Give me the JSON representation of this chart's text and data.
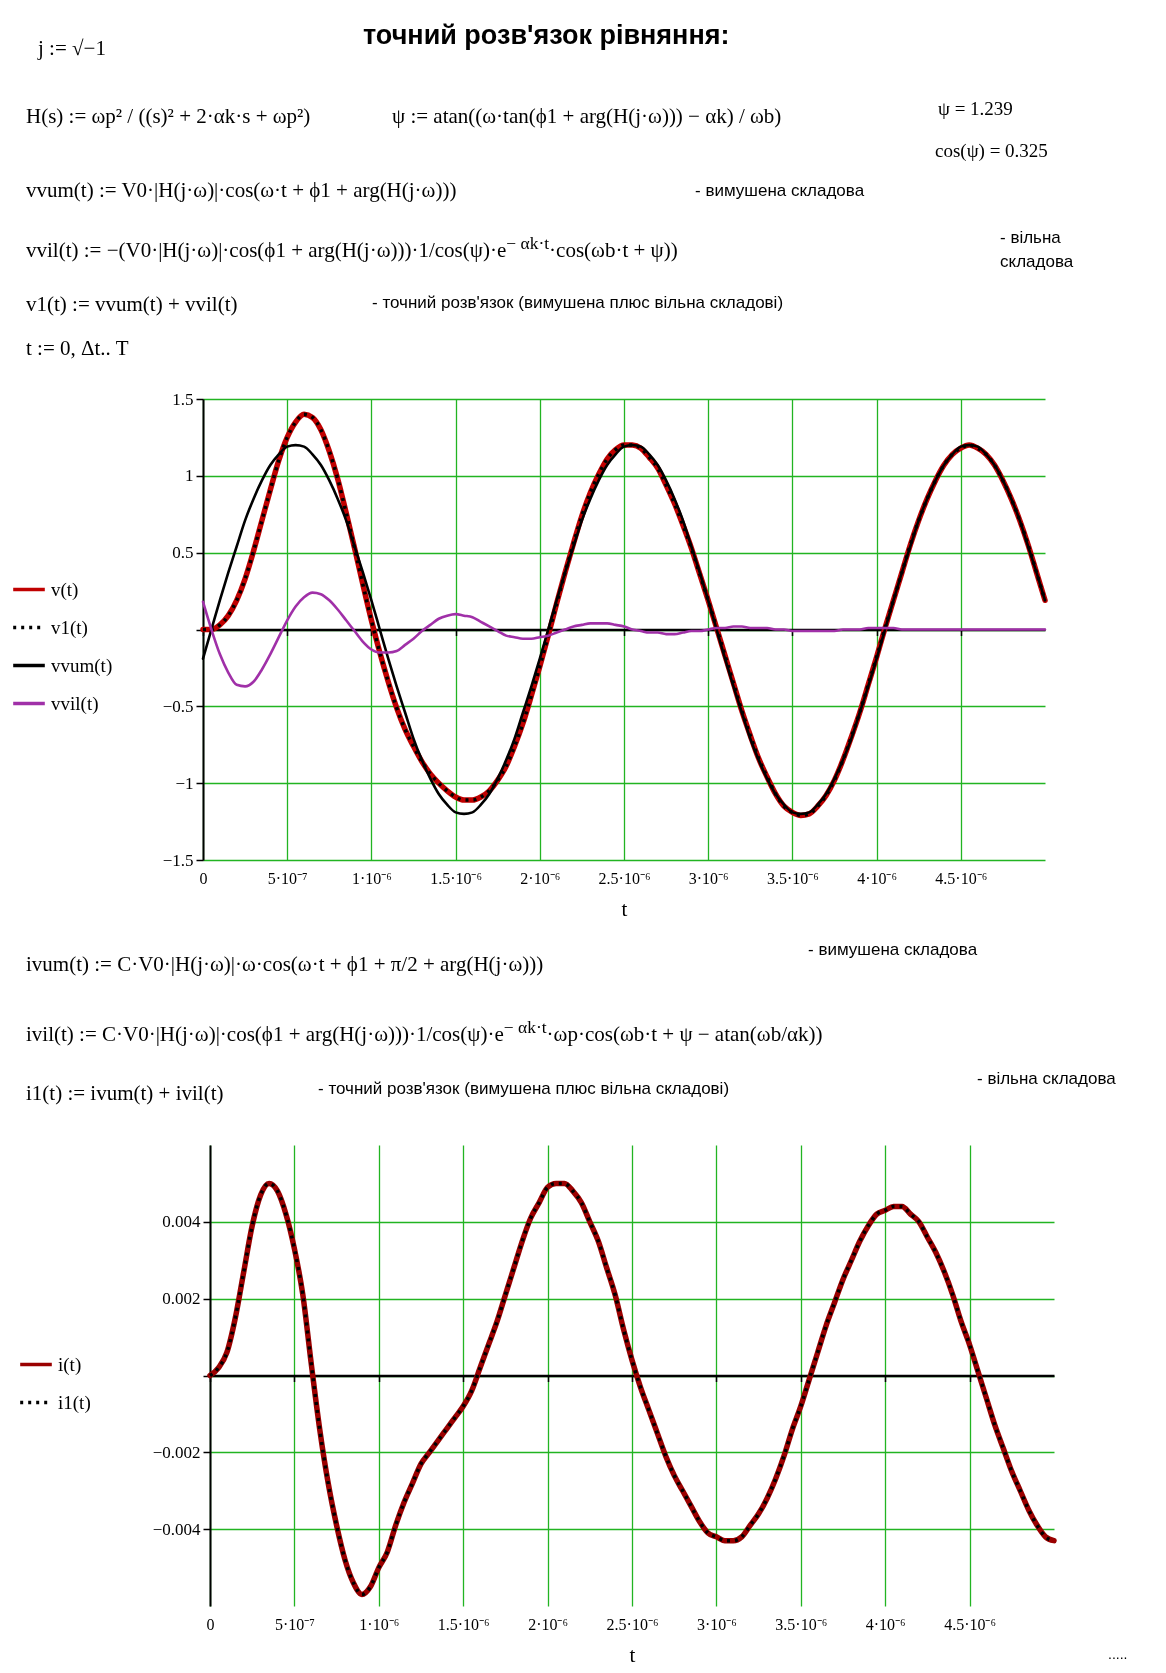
{
  "chart_data": [
    {
      "type": "line",
      "title": "точний розв'язок рівняння:",
      "annotations": [
        "j := √−1",
        "H(s) := ωp² / ((s)² + 2·αk·s + ωp²)",
        "ψ := atan((ω·tan(ϕ1 + arg(H(j·ω))) − αk) / ωb)",
        "ψ = 1.239",
        "cos(ψ) = 0.325",
        "vvum(t) := V0·|H(j·ω)|·cos(ω·t + ϕ1 + arg(H(j·ω)))",
        "- вимушена складова",
        "vvil(t) := −(V0·|H(j·ω)|·cos(ϕ1 + arg(H(j·ω)))·1/cos(ψ)·e$^{− αk·t}$·cos(ωb·t + ψ))",
        "- вільна складова",
        "v1(t) := vvum(t) + vvil(t)",
        "- точний розв'язок (вимушена плюс вільна складові)",
        "t := 0, Δt.. T"
      ],
      "xlabel": "t",
      "x": [
        0,
        5e-08,
        1e-07,
        1.5e-07,
        2e-07,
        2.5e-07,
        3e-07,
        3.5e-07,
        4e-07,
        4.5e-07,
        5e-07,
        5.5e-07,
        6e-07,
        6.5e-07,
        7e-07,
        7.5e-07,
        8e-07,
        8.5e-07,
        9e-07,
        9.5e-07,
        1e-06,
        1.05e-06,
        1.1e-06,
        1.15e-06,
        1.2e-06,
        1.25e-06,
        1.3e-06,
        1.35e-06,
        1.4e-06,
        1.45e-06,
        1.5e-06,
        1.55e-06,
        1.6e-06,
        1.65e-06,
        1.7e-06,
        1.75e-06,
        1.8e-06,
        1.85e-06,
        1.9e-06,
        1.95e-06,
        2e-06,
        2.05e-06,
        2.1e-06,
        2.15e-06,
        2.2e-06,
        2.25e-06,
        2.3e-06,
        2.35e-06,
        2.4e-06,
        2.45e-06,
        2.5e-06,
        2.55e-06,
        2.6e-06,
        2.65e-06,
        2.7e-06,
        2.75e-06,
        2.8e-06,
        2.85e-06,
        2.9e-06,
        2.95e-06,
        3e-06,
        3.05e-06,
        3.1e-06,
        3.15e-06,
        3.2e-06,
        3.25e-06,
        3.3e-06,
        3.35e-06,
        3.4e-06,
        3.45e-06,
        3.5e-06,
        3.55e-06,
        3.6e-06,
        3.65e-06,
        3.7e-06,
        3.75e-06,
        3.8e-06,
        3.85e-06,
        3.9e-06,
        3.95e-06,
        4e-06,
        4.05e-06,
        4.1e-06,
        4.15e-06,
        4.2e-06,
        4.25e-06,
        4.3e-06,
        4.35e-06,
        4.4e-06,
        4.45e-06,
        4.5e-06,
        4.55e-06,
        4.6e-06,
        4.65e-06,
        4.7e-06,
        4.75e-06,
        4.8e-06,
        4.85e-06,
        4.9e-06,
        4.95e-06,
        5e-06
      ],
      "series": [
        {
          "name": "v(t)",
          "color": "#c00000",
          "values": [
            0,
            0,
            0.03,
            0.09,
            0.19,
            0.33,
            0.51,
            0.71,
            0.91,
            1.1,
            1.25,
            1.35,
            1.4,
            1.38,
            1.3,
            1.16,
            0.98,
            0.76,
            0.53,
            0.29,
            0.06,
            -0.15,
            -0.34,
            -0.51,
            -0.65,
            -0.76,
            -0.86,
            -0.94,
            -1,
            -1.05,
            -1.09,
            -1.11,
            -1.11,
            -1.09,
            -1.05,
            -0.98,
            -0.89,
            -0.76,
            -0.61,
            -0.43,
            -0.24,
            -0.04,
            0.17,
            0.37,
            0.56,
            0.74,
            0.89,
            1.01,
            1.11,
            1.17,
            1.2,
            1.2,
            1.18,
            1.12,
            1.05,
            0.94,
            0.82,
            0.68,
            0.53,
            0.36,
            0.19,
            0.01,
            -0.17,
            -0.35,
            -0.53,
            -0.69,
            -0.84,
            -0.96,
            -1.07,
            -1.15,
            -1.19,
            -1.21,
            -1.2,
            -1.15,
            -1.08,
            -0.98,
            -0.85,
            -0.7,
            -0.54,
            -0.36,
            -0.18,
            0.01,
            0.19,
            0.37,
            0.55,
            0.71,
            0.85,
            0.97,
            1.07,
            1.14,
            1.18,
            1.2,
            1.18,
            1.14,
            1.07,
            0.97,
            0.85,
            0.71,
            0.55,
            0.37,
            0.19
          ]
        },
        {
          "name": "v1(t)",
          "color": "#000000",
          "line_style": "dotted",
          "values": [
            0,
            0,
            0.03,
            0.09,
            0.19,
            0.33,
            0.51,
            0.71,
            0.91,
            1.1,
            1.25,
            1.35,
            1.4,
            1.38,
            1.3,
            1.16,
            0.98,
            0.76,
            0.53,
            0.29,
            0.06,
            -0.15,
            -0.34,
            -0.51,
            -0.65,
            -0.76,
            -0.86,
            -0.94,
            -1,
            -1.05,
            -1.09,
            -1.11,
            -1.11,
            -1.09,
            -1.05,
            -0.98,
            -0.89,
            -0.76,
            -0.61,
            -0.43,
            -0.24,
            -0.04,
            0.17,
            0.37,
            0.56,
            0.74,
            0.89,
            1.01,
            1.11,
            1.17,
            1.2,
            1.2,
            1.18,
            1.12,
            1.05,
            0.94,
            0.82,
            0.68,
            0.53,
            0.36,
            0.19,
            0.01,
            -0.17,
            -0.35,
            -0.53,
            -0.69,
            -0.84,
            -0.96,
            -1.07,
            -1.15,
            -1.19,
            -1.21,
            -1.2,
            -1.15,
            -1.08,
            -0.98,
            -0.85,
            -0.7,
            -0.54,
            -0.36,
            -0.18,
            0.01,
            0.19,
            0.37,
            0.55,
            0.71,
            0.85,
            0.97,
            1.07,
            1.14,
            1.18,
            1.2,
            1.18,
            1.14,
            1.07,
            0.97,
            0.85,
            0.71,
            0.55,
            0.37,
            0.19
          ]
        },
        {
          "name": "vvum(t)",
          "color": "#000000",
          "values": [
            -0.19,
            0,
            0.19,
            0.37,
            0.54,
            0.71,
            0.85,
            0.97,
            1.07,
            1.14,
            1.19,
            1.2,
            1.19,
            1.14,
            1.07,
            0.97,
            0.85,
            0.71,
            0.54,
            0.37,
            0.19,
            0,
            -0.19,
            -0.37,
            -0.54,
            -0.71,
            -0.85,
            -0.97,
            -1.07,
            -1.14,
            -1.19,
            -1.2,
            -1.19,
            -1.14,
            -1.07,
            -0.97,
            -0.85,
            -0.71,
            -0.54,
            -0.37,
            -0.19,
            0,
            0.19,
            0.37,
            0.54,
            0.71,
            0.85,
            0.97,
            1.07,
            1.14,
            1.19,
            1.2,
            1.19,
            1.14,
            1.07,
            0.97,
            0.85,
            0.71,
            0.54,
            0.37,
            0.19,
            0,
            -0.19,
            -0.37,
            -0.54,
            -0.71,
            -0.85,
            -0.97,
            -1.07,
            -1.14,
            -1.19,
            -1.2,
            -1.19,
            -1.14,
            -1.07,
            -0.97,
            -0.85,
            -0.71,
            -0.54,
            -0.37,
            -0.19,
            0,
            0.19,
            0.37,
            0.54,
            0.71,
            0.85,
            0.97,
            1.07,
            1.14,
            1.19,
            1.2,
            1.19,
            1.14,
            1.07,
            0.97,
            0.85,
            0.71,
            0.54,
            0.37,
            0.19
          ]
        },
        {
          "name": "vvil(t)",
          "color": "#a030a8",
          "values": [
            0.18,
            0,
            -0.16,
            -0.28,
            -0.36,
            -0.37,
            -0.34,
            -0.26,
            -0.16,
            -0.05,
            0.06,
            0.15,
            0.21,
            0.24,
            0.23,
            0.19,
            0.13,
            0.06,
            -0.01,
            -0.08,
            -0.13,
            -0.15,
            -0.15,
            -0.14,
            -0.1,
            -0.06,
            -0.01,
            0.03,
            0.07,
            0.09,
            0.1,
            0.09,
            0.08,
            0.05,
            0.02,
            -0.01,
            -0.04,
            -0.05,
            -0.06,
            -0.06,
            -0.05,
            -0.04,
            -0.02,
            0,
            0.02,
            0.03,
            0.04,
            0.04,
            0.04,
            0.03,
            0.02,
            0,
            -0.01,
            -0.02,
            -0.02,
            -0.03,
            -0.03,
            -0.02,
            -0.01,
            -0.01,
            0,
            0.01,
            0.01,
            0.02,
            0.02,
            0.01,
            0.01,
            0.01,
            0,
            0,
            -0.01,
            -0.01,
            -0.01,
            -0.01,
            -0.01,
            -0.01,
            0,
            0,
            0,
            0.01,
            0.01,
            0.01,
            0.01,
            0,
            0,
            0,
            0,
            0,
            0,
            0,
            0,
            0,
            0,
            0,
            0,
            0,
            0,
            0,
            0,
            0,
            0
          ]
        }
      ],
      "xlim": [
        0,
        5e-06
      ],
      "xticks": [
        0,
        {
          "value": 5e-07,
          "label": "5·10⁻⁷"
        },
        {
          "value": 1e-06,
          "label": "1·10⁻⁶"
        },
        {
          "value": 1.5e-06,
          "label": "1.5·10⁻⁶"
        },
        {
          "value": 2e-06,
          "label": "2·10⁻⁶"
        },
        {
          "value": 2.5e-06,
          "label": "2.5·10⁻⁶"
        },
        {
          "value": 3e-06,
          "label": "3·10⁻⁶"
        },
        {
          "value": 3.5e-06,
          "label": "3.5·10⁻⁶"
        },
        {
          "value": 4e-06,
          "label": "4·10⁻⁶"
        },
        {
          "value": 4.5e-06,
          "label": "4.5·10⁻⁶"
        }
      ],
      "ylim": [
        -1.5,
        1.5
      ],
      "yticks": [
        -1.5,
        -1,
        -0.5,
        {
          "value": 0,
          "label": null
        },
        0.5,
        1,
        1.5
      ],
      "grid": true,
      "legend": "left"
    },
    {
      "type": "line",
      "annotations": [
        "ivum(t) := C·V0·|H(j·ω)|·ω·cos(ω·t + ϕ1 + π/2 + arg(H(j·ω)))",
        "- вимушена складова",
        "ivil(t) := C·V0·|H(j·ω)|·cos(ϕ1 + arg(H(j·ω)))·1/cos(ψ)·e$^{− αk·t}$·ωp·cos(ωb·t + ψ − atan(ωb/αk))",
        "- вільна складова",
        "i1(t) := ivum(t) + ivil(t)",
        "- точний розв'язок (вимушена плюс вільна складові)",
        "....."
      ],
      "xlabel": "t",
      "x": [
        0,
        5e-08,
        1e-07,
        1.5e-07,
        2e-07,
        2.5e-07,
        3e-07,
        3.5e-07,
        4e-07,
        4.5e-07,
        5e-07,
        5.5e-07,
        6e-07,
        6.5e-07,
        7e-07,
        7.5e-07,
        8e-07,
        8.5e-07,
        9e-07,
        9.5e-07,
        1e-06,
        1.05e-06,
        1.1e-06,
        1.15e-06,
        1.2e-06,
        1.25e-06,
        1.3e-06,
        1.35e-06,
        1.4e-06,
        1.45e-06,
        1.5e-06,
        1.55e-06,
        1.6e-06,
        1.65e-06,
        1.7e-06,
        1.75e-06,
        1.8e-06,
        1.85e-06,
        1.9e-06,
        1.95e-06,
        2e-06,
        2.05e-06,
        2.1e-06,
        2.15e-06,
        2.2e-06,
        2.25e-06,
        2.3e-06,
        2.35e-06,
        2.4e-06,
        2.45e-06,
        2.5e-06,
        2.55e-06,
        2.6e-06,
        2.65e-06,
        2.7e-06,
        2.75e-06,
        2.8e-06,
        2.85e-06,
        2.9e-06,
        2.95e-06,
        3e-06,
        3.05e-06,
        3.1e-06,
        3.15e-06,
        3.2e-06,
        3.25e-06,
        3.3e-06,
        3.35e-06,
        3.4e-06,
        3.45e-06,
        3.5e-06,
        3.55e-06,
        3.6e-06,
        3.65e-06,
        3.7e-06,
        3.75e-06,
        3.8e-06,
        3.85e-06,
        3.9e-06,
        3.95e-06,
        4e-06,
        4.05e-06,
        4.1e-06,
        4.15e-06,
        4.2e-06,
        4.25e-06,
        4.3e-06,
        4.35e-06,
        4.4e-06,
        4.45e-06,
        4.5e-06,
        4.55e-06,
        4.6e-06,
        4.65e-06,
        4.7e-06,
        4.75e-06,
        4.8e-06,
        4.85e-06,
        4.9e-06,
        4.95e-06,
        5e-06
      ],
      "series": [
        {
          "name": "i(t)",
          "color": "#9a0000",
          "values": [
            0,
            0.0002,
            0.0006,
            0.0015,
            0.0027,
            0.0039,
            0.0047,
            0.005,
            0.0048,
            0.0042,
            0.0033,
            0.0021,
            0.0003,
            -0.0014,
            -0.0028,
            -0.0039,
            -0.0048,
            -0.0054,
            -0.0057,
            -0.0055,
            -0.005,
            -0.0046,
            -0.0039,
            -0.0033,
            -0.0028,
            -0.0023,
            -0.002,
            -0.0017,
            -0.0014,
            -0.0011,
            -0.0008,
            -0.0004,
            0.0002,
            0.0008,
            0.0014,
            0.0021,
            0.0028,
            0.0035,
            0.0041,
            0.0045,
            0.0049,
            0.005,
            0.005,
            0.0048,
            0.0045,
            0.004,
            0.0035,
            0.0028,
            0.0021,
            0.0012,
            0.0004,
            -0.0003,
            -0.0009,
            -0.0015,
            -0.0021,
            -0.0026,
            -0.003,
            -0.0034,
            -0.0038,
            -0.0041,
            -0.0042,
            -0.0043,
            -0.0043,
            -0.0042,
            -0.0039,
            -0.0036,
            -0.0032,
            -0.0027,
            -0.0021,
            -0.0014,
            -0.0008,
            -0.0001,
            0.0006,
            0.0013,
            0.0019,
            0.0025,
            0.003,
            0.0035,
            0.0039,
            0.0042,
            0.0043,
            0.0044,
            0.0044,
            0.0042,
            0.004,
            0.0036,
            0.0032,
            0.0027,
            0.0021,
            0.0014,
            0.0008,
            0.0001,
            -0.0006,
            -0.0013,
            -0.0019,
            -0.0025,
            -0.003,
            -0.0035,
            -0.0039,
            -0.0042,
            -0.0043
          ]
        },
        {
          "name": "i1(t)",
          "color": "#000000",
          "line_style": "dotted",
          "values": [
            0,
            0.0002,
            0.0006,
            0.0015,
            0.0027,
            0.0039,
            0.0047,
            0.005,
            0.0048,
            0.0042,
            0.0033,
            0.0021,
            0.0003,
            -0.0014,
            -0.0028,
            -0.0039,
            -0.0048,
            -0.0054,
            -0.0057,
            -0.0055,
            -0.005,
            -0.0046,
            -0.0039,
            -0.0033,
            -0.0028,
            -0.0023,
            -0.002,
            -0.0017,
            -0.0014,
            -0.0011,
            -0.0008,
            -0.0004,
            0.0002,
            0.0008,
            0.0014,
            0.0021,
            0.0028,
            0.0035,
            0.0041,
            0.0045,
            0.0049,
            0.005,
            0.005,
            0.0048,
            0.0045,
            0.004,
            0.0035,
            0.0028,
            0.0021,
            0.0012,
            0.0004,
            -0.0003,
            -0.0009,
            -0.0015,
            -0.0021,
            -0.0026,
            -0.003,
            -0.0034,
            -0.0038,
            -0.0041,
            -0.0042,
            -0.0043,
            -0.0043,
            -0.0042,
            -0.0039,
            -0.0036,
            -0.0032,
            -0.0027,
            -0.0021,
            -0.0014,
            -0.0008,
            -0.0001,
            0.0006,
            0.0013,
            0.0019,
            0.0025,
            0.003,
            0.0035,
            0.0039,
            0.0042,
            0.0043,
            0.0044,
            0.0044,
            0.0042,
            0.004,
            0.0036,
            0.0032,
            0.0027,
            0.0021,
            0.0014,
            0.0008,
            0.0001,
            -0.0006,
            -0.0013,
            -0.0019,
            -0.0025,
            -0.003,
            -0.0035,
            -0.0039,
            -0.0042,
            -0.0043
          ]
        }
      ],
      "xlim": [
        0,
        5e-06
      ],
      "xticks": [
        0,
        {
          "value": 5e-07,
          "label": "5·10⁻⁷"
        },
        {
          "value": 1e-06,
          "label": "1·10⁻⁶"
        },
        {
          "value": 1.5e-06,
          "label": "1.5·10⁻⁶"
        },
        {
          "value": 2e-06,
          "label": "2·10⁻⁶"
        },
        {
          "value": 2.5e-06,
          "label": "2.5·10⁻⁶"
        },
        {
          "value": 3e-06,
          "label": "3·10⁻⁶"
        },
        {
          "value": 3.5e-06,
          "label": "3.5·10⁻⁶"
        },
        {
          "value": 4e-06,
          "label": "4·10⁻⁶"
        },
        {
          "value": 4.5e-06,
          "label": "4.5·10⁻⁶"
        }
      ],
      "ylim": [
        -0.006,
        0.006
      ],
      "yticks": [
        -0.004,
        -0.002,
        {
          "value": 0,
          "label": null
        },
        0.002,
        0.004
      ],
      "grid": true,
      "legend": "left"
    }
  ]
}
